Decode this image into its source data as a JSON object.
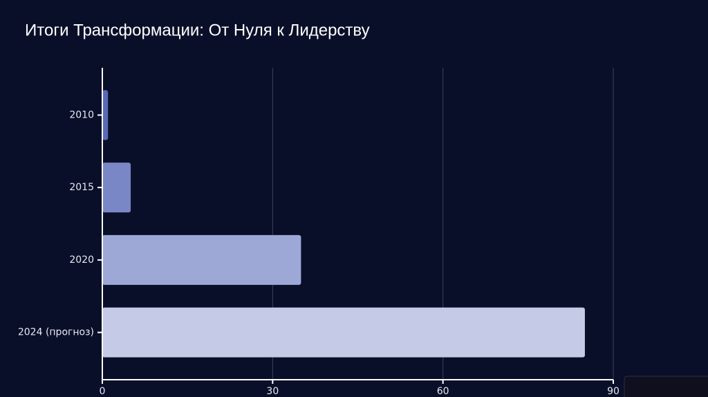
{
  "chart_data": {
    "type": "bar",
    "orientation": "horizontal",
    "title": "Итоги Трансформации: От Нуля к Лидерству",
    "categories": [
      "2010",
      "2015",
      "2020",
      "2024 (прогноз)"
    ],
    "values": [
      1,
      5,
      35,
      85
    ],
    "colors": [
      "#5a6bb6",
      "#7a87c6",
      "#9ea8d6",
      "#c5cae6"
    ],
    "xlim": [
      0,
      90
    ],
    "xticks": [
      0,
      30,
      60,
      90
    ],
    "grid": true
  }
}
